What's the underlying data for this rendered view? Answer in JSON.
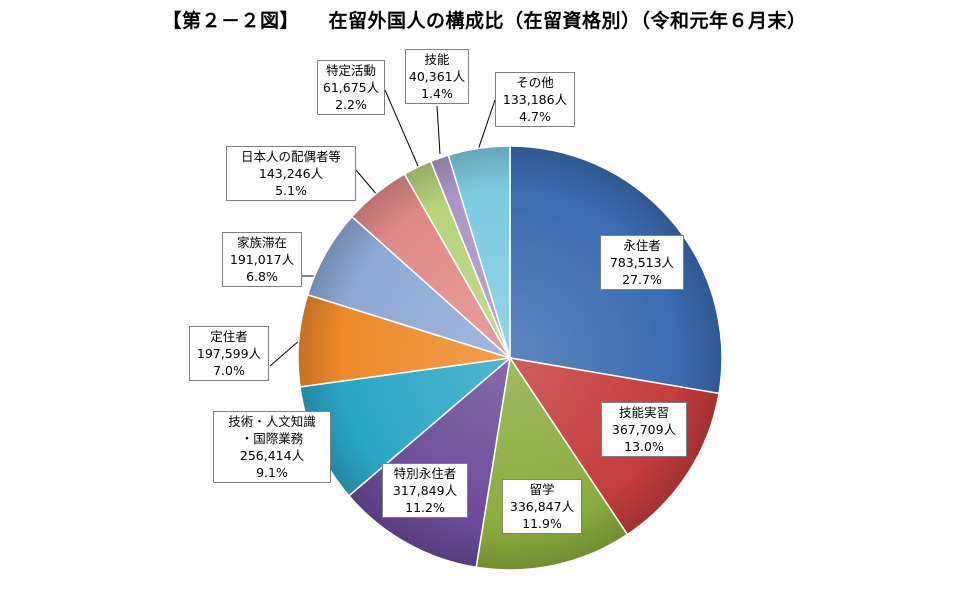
{
  "chart_data": {
    "type": "pie",
    "title": "【第２－２図】　　在留外国人の構成比（在留資格別）（令和元年６月末）",
    "slices": [
      {
        "name": "永住者",
        "count": "783,513人",
        "percent_label": "27.7%",
        "value": 27.7,
        "color": "#3a6bb0"
      },
      {
        "name": "技能実習",
        "count": "367,709人",
        "percent_label": "13.0%",
        "value": 13.0,
        "color": "#c43c3c"
      },
      {
        "name": "留学",
        "count": "336,847人",
        "percent_label": "11.9%",
        "value": 11.9,
        "color": "#8aac3e"
      },
      {
        "name": "特別永住者",
        "count": "317,849人",
        "percent_label": "11.2%",
        "value": 11.2,
        "color": "#6b4a98"
      },
      {
        "name": "技術・人文知識・国際業務",
        "name_lines": [
          "技術・人文知識",
          "・国際業務"
        ],
        "count": "256,414人",
        "percent_label": "9.1%",
        "value": 9.1,
        "color": "#2ba6c6"
      },
      {
        "name": "定住者",
        "count": "197,599人",
        "percent_label": "7.0%",
        "value": 7.0,
        "color": "#ee8a2a"
      },
      {
        "name": "家族滞在",
        "count": "191,017人",
        "percent_label": "6.8%",
        "value": 6.8,
        "color": "#8ea9d6"
      },
      {
        "name": "日本人の配偶者等",
        "count": "143,246人",
        "percent_label": "5.1%",
        "value": 5.1,
        "color": "#e08a87"
      },
      {
        "name": "特定活動",
        "count": "61,675人",
        "percent_label": "2.2%",
        "value": 2.2,
        "color": "#b6d37c"
      },
      {
        "name": "技能",
        "count": "40,361人",
        "percent_label": "1.4%",
        "value": 1.4,
        "color": "#ab97c7"
      },
      {
        "name": "その他",
        "count": "133,186人",
        "percent_label": "4.7%",
        "value": 4.7,
        "color": "#7ccbe0"
      }
    ]
  }
}
